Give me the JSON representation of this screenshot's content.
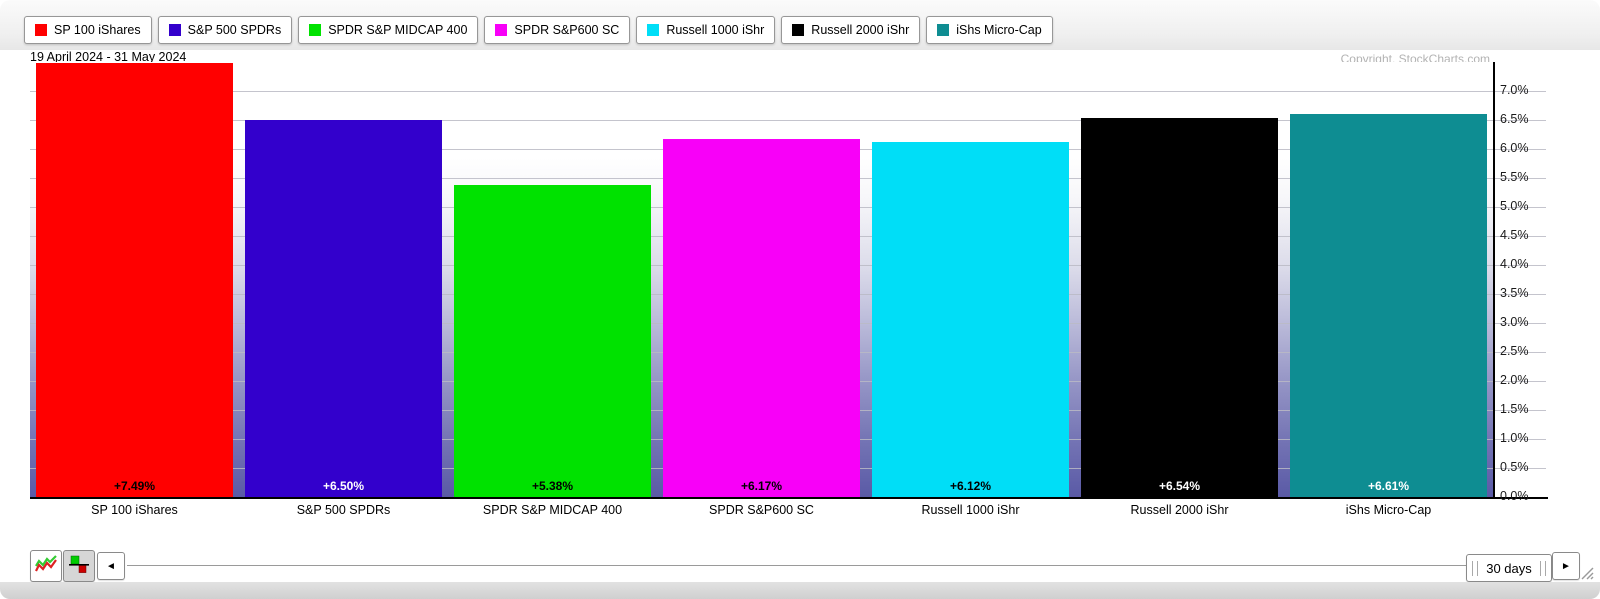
{
  "header": {
    "date_range": "19 April 2024 - 31 May 2024",
    "copyright": "Copyright, StockCharts.com"
  },
  "legend": {
    "items": [
      {
        "label": "SP 100 iShares",
        "color": "#ff0000"
      },
      {
        "label": "S&P 500 SPDRs",
        "color": "#3300cc"
      },
      {
        "label": "SPDR S&P MIDCAP 400",
        "color": "#00e200"
      },
      {
        "label": "SPDR S&P600 SC",
        "color": "#f800f8"
      },
      {
        "label": "Russell 1000 iShr",
        "color": "#00def7"
      },
      {
        "label": "Russell 2000 iShr",
        "color": "#000000"
      },
      {
        "label": "iShs Micro-Cap",
        "color": "#0e8d92"
      }
    ]
  },
  "chart_data": {
    "type": "bar",
    "title": "",
    "period_label": "19 April 2024 - 31 May 2024",
    "categories": [
      "SP 100 iShares",
      "S&P 500 SPDRs",
      "SPDR S&P MIDCAP 400",
      "SPDR S&P600 SC",
      "Russell 1000 iShr",
      "Russell 2000 iShr",
      "iShs Micro-Cap"
    ],
    "values": [
      7.49,
      6.5,
      5.38,
      6.17,
      6.12,
      6.54,
      6.61
    ],
    "value_labels": [
      "+7.49%",
      "+6.50%",
      "+5.38%",
      "+6.17%",
      "+6.12%",
      "+6.54%",
      "+6.61%"
    ],
    "bar_colors": [
      "#ff0000",
      "#3300cc",
      "#00e200",
      "#f800f8",
      "#00def7",
      "#000000",
      "#0e8d92"
    ],
    "value_label_colors": [
      "#000000",
      "#ffffff",
      "#000000",
      "#000000",
      "#000000",
      "#ffffff",
      "#ffffff"
    ],
    "xlabel": "",
    "ylabel": "",
    "ylim": [
      0,
      7.5
    ],
    "ytick_step": 0.5,
    "ytick_labels": [
      "0.0%",
      "0.5%",
      "1.0%",
      "1.5%",
      "2.0%",
      "2.5%",
      "3.0%",
      "3.5%",
      "4.0%",
      "4.5%",
      "5.0%",
      "5.5%",
      "6.0%",
      "6.5%",
      "7.0%"
    ],
    "grid": true,
    "legend_position": "top",
    "yaxis_side": "right"
  },
  "toolbar": {
    "slider_label": "30 days",
    "left_arrow": "◄",
    "right_arrow": "►",
    "bar_mode_selected": true,
    "icons": {
      "line_mode": "line-chart-icon",
      "bar_mode": "histogram-icon",
      "scroll_left": "left-arrow-icon",
      "scroll_right": "right-arrow-icon",
      "resize": "resize-grip-icon"
    }
  }
}
